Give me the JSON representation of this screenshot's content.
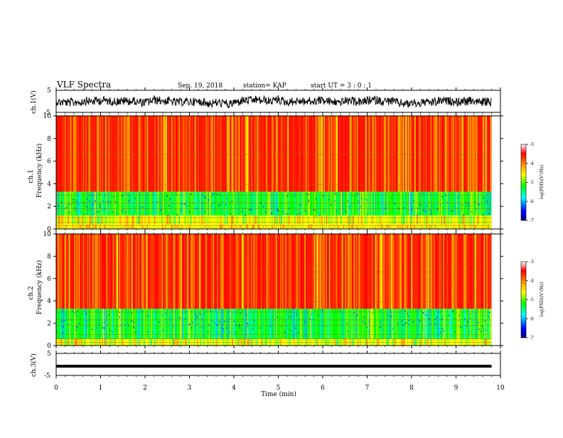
{
  "header": {
    "title": "VLF Spectra",
    "date": "Sep. 19, 2018",
    "station": "station= KAP",
    "start_ut": "start UT = 3 : 0 : 1"
  },
  "chart_data": {
    "type": "heatmap",
    "xlabel": "Time (min)",
    "xlim": [
      0,
      10
    ],
    "xticks": [
      "0",
      "1",
      "2",
      "3",
      "4",
      "5",
      "6",
      "7",
      "8",
      "9",
      "10"
    ],
    "data_end_min": 9.8,
    "panels": [
      {
        "name": "ch1-waveform",
        "ylabel": "ch.1(V)",
        "ylim": [
          -5,
          5
        ],
        "yticks": [
          "5",
          "-5"
        ],
        "style": "noisy-waveform",
        "baseline": 0
      },
      {
        "name": "ch1-spectrogram",
        "ylabel_line1": "ch.1",
        "ylabel_line2": "Frequency (kHz)",
        "ylim": [
          0,
          10
        ],
        "yticks": [
          "0",
          "2",
          "4",
          "6",
          "8",
          "10"
        ],
        "colorbar": {
          "label": "log(PSD)(V²/Hz)",
          "ticks": [
            "-3",
            "-4",
            "-5",
            "-6",
            "-7"
          ],
          "range": [
            -7,
            -3
          ],
          "colors": [
            "#000080",
            "#0000ff",
            "#00ffff",
            "#00ff00",
            "#ffff00",
            "#ff8000",
            "#ff0000",
            "#ffffff"
          ]
        },
        "bands": [
          {
            "from": 0,
            "to": 0.4,
            "level": "yellow"
          },
          {
            "from": 0.4,
            "to": 1.2,
            "level": "yellow-green"
          },
          {
            "from": 1.2,
            "to": 3.3,
            "level": "green-cyan"
          },
          {
            "from": 3.3,
            "to": 10,
            "level": "red-yellow"
          }
        ]
      },
      {
        "name": "ch2-spectrogram",
        "ylabel_line1": "ch.2",
        "ylabel_line2": "Frequency (kHz)",
        "ylim": [
          0,
          10
        ],
        "yticks": [
          "0",
          "2",
          "4",
          "6",
          "8",
          "10"
        ],
        "colorbar": {
          "label": "log(PSD)(V²/Hz)",
          "ticks": [
            "-3",
            "-4",
            "-5",
            "-6",
            "-7"
          ],
          "range": [
            -7,
            -3
          ],
          "colors": [
            "#000080",
            "#0000ff",
            "#00ffff",
            "#00ff00",
            "#ffff00",
            "#ff8000",
            "#ff0000",
            "#ffffff"
          ]
        },
        "bands": [
          {
            "from": 0,
            "to": 0.6,
            "level": "yellow-green"
          },
          {
            "from": 0.6,
            "to": 3.3,
            "level": "green-cyan"
          },
          {
            "from": 3.3,
            "to": 10,
            "level": "red-yellow"
          }
        ]
      },
      {
        "name": "ch3-waveform",
        "ylabel": "ch.3(V)",
        "ylim": [
          -5,
          5
        ],
        "yticks": [
          "5",
          "-5"
        ],
        "style": "flat-line",
        "baseline": -0.8
      }
    ]
  }
}
